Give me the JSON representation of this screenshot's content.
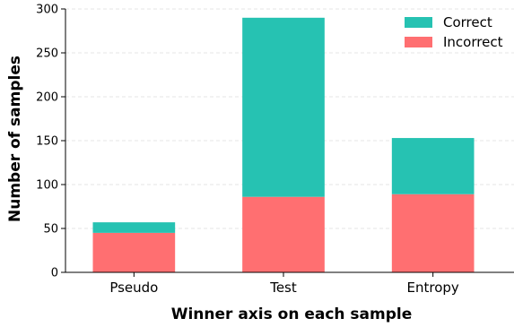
{
  "chart_data": {
    "type": "bar",
    "stacked": true,
    "title": "",
    "xlabel": "Winner axis on each sample",
    "ylabel": "Number of samples",
    "categories": [
      "Pseudo",
      "Test",
      "Entropy"
    ],
    "series": [
      {
        "name": "Incorrect",
        "color": "#ff6f71",
        "values": [
          45,
          86,
          89
        ]
      },
      {
        "name": "Correct",
        "color": "#26c2b2",
        "values": [
          12,
          204,
          64
        ]
      }
    ],
    "ylim": [
      0,
      300
    ],
    "yticks": [
      0,
      50,
      100,
      150,
      200,
      250,
      300
    ],
    "grid": "horizontal-dashed",
    "legend": "top-right",
    "legend_order": [
      "Correct",
      "Incorrect"
    ]
  }
}
